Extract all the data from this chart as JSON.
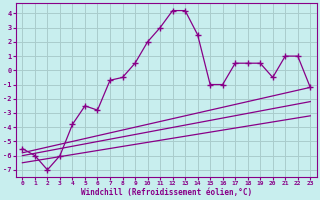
{
  "xlabel": "Windchill (Refroidissement éolien,°C)",
  "bg_color": "#c8eeee",
  "grid_color": "#aacccc",
  "line_color": "#880088",
  "xlim": [
    -0.5,
    23.5
  ],
  "ylim": [
    -7.5,
    4.7
  ],
  "yticks": [
    -7,
    -6,
    -5,
    -4,
    -3,
    -2,
    -1,
    0,
    1,
    2,
    3,
    4
  ],
  "xticks": [
    0,
    1,
    2,
    3,
    4,
    5,
    6,
    7,
    8,
    9,
    10,
    11,
    12,
    13,
    14,
    15,
    16,
    17,
    18,
    19,
    20,
    21,
    22,
    23
  ],
  "main_x": [
    0,
    1,
    2,
    3,
    4,
    5,
    6,
    7,
    8,
    9,
    10,
    11,
    12,
    13,
    14,
    15,
    16,
    17,
    18,
    19,
    20,
    21,
    22,
    23
  ],
  "main_y": [
    -5.5,
    -6.0,
    -7.0,
    -6.0,
    -3.8,
    -2.5,
    -2.8,
    -0.7,
    -0.5,
    0.5,
    2.0,
    3.0,
    4.2,
    4.2,
    2.5,
    -1.0,
    -1.0,
    0.5,
    0.5,
    0.5,
    -0.5,
    1.0,
    1.0,
    -1.2
  ],
  "line1_x": [
    0,
    23
  ],
  "line1_y": [
    -5.8,
    -1.2
  ],
  "line2_x": [
    0,
    23
  ],
  "line2_y": [
    -6.0,
    -2.2
  ],
  "line3_x": [
    0,
    23
  ],
  "line3_y": [
    -6.5,
    -3.2
  ]
}
